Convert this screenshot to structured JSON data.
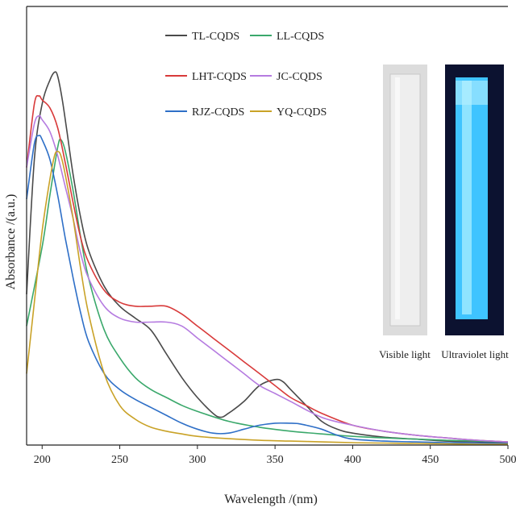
{
  "chart_data": {
    "type": "line",
    "title": "",
    "xlabel": "Wavelength /(nm)",
    "ylabel": "Absorbance /(a.u.)",
    "xlim": [
      190,
      500
    ],
    "ylim": [
      0,
      1
    ],
    "xticks": [
      200,
      250,
      300,
      350,
      400,
      450,
      500
    ],
    "grid": false,
    "legend_position": "top-center",
    "series": [
      {
        "name": "TL-CQDS",
        "color": "#4a4a4a",
        "x": [
          190,
          195,
          200,
          205,
          208,
          210,
          213,
          216,
          220,
          225,
          230,
          240,
          250,
          260,
          270,
          280,
          290,
          300,
          310,
          315,
          320,
          330,
          340,
          350,
          355,
          360,
          370,
          380,
          390,
          400,
          420,
          440,
          460,
          480,
          500
        ],
        "y": [
          0.38,
          0.72,
          0.86,
          0.92,
          0.94,
          0.93,
          0.87,
          0.79,
          0.68,
          0.57,
          0.49,
          0.4,
          0.35,
          0.32,
          0.29,
          0.23,
          0.17,
          0.12,
          0.08,
          0.07,
          0.08,
          0.11,
          0.15,
          0.165,
          0.16,
          0.14,
          0.1,
          0.06,
          0.04,
          0.03,
          0.02,
          0.015,
          0.01,
          0.008,
          0.005
        ]
      },
      {
        "name": "LL-CQDS",
        "color": "#3aa86b",
        "x": [
          190,
          200,
          205,
          210,
          212,
          215,
          220,
          225,
          230,
          240,
          250,
          260,
          270,
          280,
          290,
          300,
          320,
          340,
          360,
          380,
          400,
          420,
          440,
          460,
          480,
          500
        ],
        "y": [
          0.3,
          0.5,
          0.63,
          0.75,
          0.77,
          0.74,
          0.64,
          0.52,
          0.42,
          0.29,
          0.22,
          0.17,
          0.14,
          0.12,
          0.1,
          0.085,
          0.06,
          0.045,
          0.035,
          0.028,
          0.022,
          0.018,
          0.015,
          0.012,
          0.01,
          0.008
        ]
      },
      {
        "name": "LHT-CQDS",
        "color": "#d83a3a",
        "x": [
          190,
          195,
          198,
          200,
          205,
          210,
          215,
          220,
          225,
          230,
          240,
          250,
          260,
          270,
          280,
          290,
          300,
          310,
          320,
          330,
          340,
          350,
          360,
          370,
          380,
          400,
          420,
          440,
          460,
          480,
          500
        ],
        "y": [
          0.7,
          0.86,
          0.88,
          0.87,
          0.85,
          0.8,
          0.71,
          0.61,
          0.52,
          0.46,
          0.39,
          0.36,
          0.35,
          0.35,
          0.35,
          0.33,
          0.3,
          0.27,
          0.24,
          0.21,
          0.18,
          0.15,
          0.12,
          0.1,
          0.08,
          0.05,
          0.035,
          0.025,
          0.018,
          0.012,
          0.008
        ]
      },
      {
        "name": "JC-CQDS",
        "color": "#b57be0",
        "x": [
          190,
          195,
          198,
          200,
          205,
          210,
          215,
          220,
          225,
          230,
          240,
          250,
          260,
          270,
          280,
          290,
          300,
          310,
          320,
          330,
          340,
          350,
          360,
          380,
          400,
          420,
          440,
          460,
          480,
          500
        ],
        "y": [
          0.7,
          0.81,
          0.83,
          0.82,
          0.79,
          0.73,
          0.65,
          0.57,
          0.48,
          0.42,
          0.35,
          0.32,
          0.31,
          0.31,
          0.31,
          0.3,
          0.27,
          0.24,
          0.21,
          0.18,
          0.15,
          0.13,
          0.11,
          0.07,
          0.05,
          0.035,
          0.025,
          0.018,
          0.012,
          0.008
        ]
      },
      {
        "name": "RJZ-CQDS",
        "color": "#2e6fc7",
        "x": [
          190,
          195,
          198,
          200,
          205,
          210,
          215,
          220,
          225,
          230,
          240,
          250,
          260,
          270,
          280,
          290,
          300,
          310,
          320,
          330,
          340,
          350,
          360,
          365,
          370,
          380,
          390,
          400,
          420,
          440,
          460,
          480,
          500
        ],
        "y": [
          0.62,
          0.76,
          0.78,
          0.77,
          0.72,
          0.63,
          0.52,
          0.42,
          0.33,
          0.26,
          0.18,
          0.14,
          0.115,
          0.095,
          0.075,
          0.055,
          0.04,
          0.03,
          0.03,
          0.04,
          0.05,
          0.055,
          0.055,
          0.054,
          0.05,
          0.04,
          0.025,
          0.015,
          0.01,
          0.008,
          0.006,
          0.005,
          0.004
        ]
      },
      {
        "name": "YQ-CQDS",
        "color": "#c9a227",
        "x": [
          190,
          195,
          200,
          205,
          208,
          210,
          212,
          215,
          220,
          225,
          230,
          240,
          250,
          260,
          270,
          280,
          290,
          300,
          320,
          340,
          360,
          380,
          400,
          420,
          440,
          460,
          480,
          500
        ],
        "y": [
          0.18,
          0.36,
          0.54,
          0.67,
          0.73,
          0.74,
          0.73,
          0.68,
          0.57,
          0.44,
          0.33,
          0.18,
          0.1,
          0.065,
          0.045,
          0.035,
          0.028,
          0.022,
          0.016,
          0.012,
          0.01,
          0.008,
          0.006,
          0.005,
          0.004,
          0.003,
          0.002,
          0.002
        ]
      }
    ]
  },
  "inset": {
    "visible_caption": "Visible light",
    "uv_caption": "Ultraviolet light"
  }
}
